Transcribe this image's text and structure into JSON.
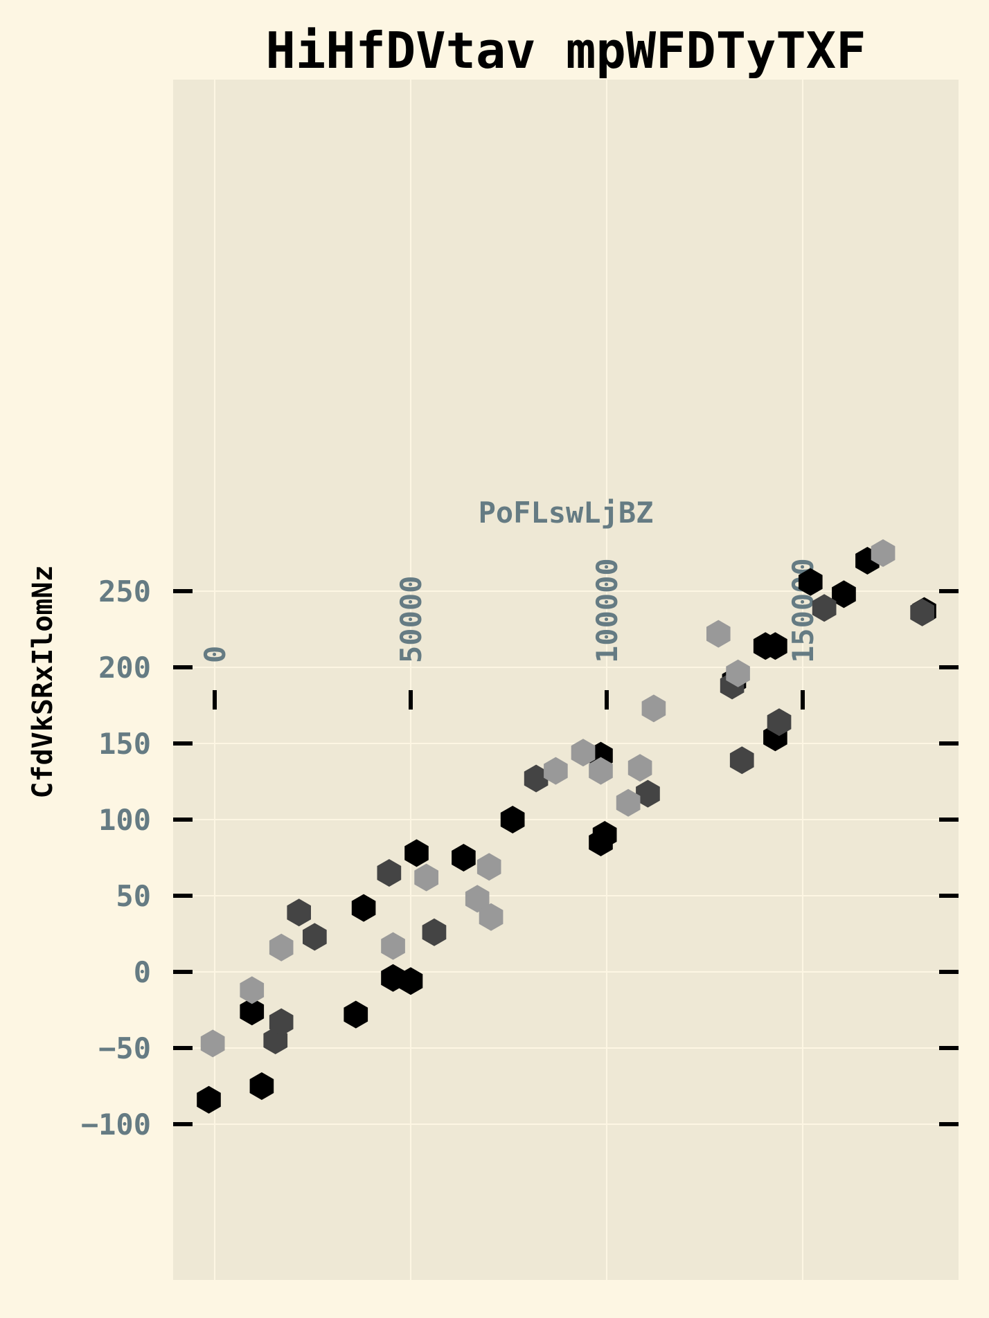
{
  "chart_data": {
    "type": "scatter",
    "title": "HiHfDVtav mpWFDTyTXF",
    "xlabel": "PoFLswLjBZ",
    "ylabel": "CfdVkSRxIlomNz",
    "xlim": [
      -10000,
      190000
    ],
    "ylim": [
      -100,
      290
    ],
    "xticks": [
      0,
      50000,
      100000,
      150000
    ],
    "xtick_labels": [
      "0",
      "50000",
      "100000",
      "150000"
    ],
    "yticks": [
      -100,
      -50,
      0,
      50,
      100,
      150,
      200,
      250
    ],
    "ytick_labels": [
      "−100",
      "−50",
      "0",
      "50",
      "100",
      "150",
      "200",
      "250"
    ],
    "grid": true,
    "marker": "hexagon",
    "colors": {
      "background": "#fdf6e3",
      "plot_background": "#eee8d5",
      "grid": "#fdf6e3",
      "tick_label": "#657b83",
      "tick": "#000000"
    },
    "series": [
      {
        "color": "#000000",
        "points": [
          {
            "x": -1500,
            "y": -84
          },
          {
            "x": 12000,
            "y": -75
          },
          {
            "x": 9500,
            "y": -26
          },
          {
            "x": 36000,
            "y": -28
          },
          {
            "x": 38000,
            "y": 42
          },
          {
            "x": 45500,
            "y": -4
          },
          {
            "x": 50000,
            "y": -6
          },
          {
            "x": 51500,
            "y": 78
          },
          {
            "x": 63500,
            "y": 75
          },
          {
            "x": 76000,
            "y": 100
          },
          {
            "x": 98500,
            "y": 85
          },
          {
            "x": 99500,
            "y": 90
          },
          {
            "x": 98500,
            "y": 142
          },
          {
            "x": 132500,
            "y": 191
          },
          {
            "x": 140500,
            "y": 214
          },
          {
            "x": 143000,
            "y": 214
          },
          {
            "x": 143000,
            "y": 154
          },
          {
            "x": 152000,
            "y": 256
          },
          {
            "x": 160500,
            "y": 248
          },
          {
            "x": 166500,
            "y": 270
          },
          {
            "x": 181000,
            "y": 237
          }
        ]
      },
      {
        "color": "#444444",
        "points": [
          {
            "x": 15500,
            "y": -45
          },
          {
            "x": 17000,
            "y": -33
          },
          {
            "x": 21500,
            "y": 39
          },
          {
            "x": 25500,
            "y": 23
          },
          {
            "x": 44500,
            "y": 65
          },
          {
            "x": 56000,
            "y": 26
          },
          {
            "x": 82000,
            "y": 127
          },
          {
            "x": 110500,
            "y": 117
          },
          {
            "x": 132000,
            "y": 188
          },
          {
            "x": 134500,
            "y": 139
          },
          {
            "x": 144000,
            "y": 164
          },
          {
            "x": 155500,
            "y": 239
          },
          {
            "x": 180500,
            "y": 236
          }
        ]
      },
      {
        "color": "#999999",
        "points": [
          {
            "x": -500,
            "y": -47
          },
          {
            "x": 9500,
            "y": -12
          },
          {
            "x": 17000,
            "y": 16
          },
          {
            "x": 45500,
            "y": 17
          },
          {
            "x": 54000,
            "y": 62
          },
          {
            "x": 67000,
            "y": 48
          },
          {
            "x": 70000,
            "y": 69
          },
          {
            "x": 70500,
            "y": 36
          },
          {
            "x": 87000,
            "y": 132
          },
          {
            "x": 94000,
            "y": 144
          },
          {
            "x": 98500,
            "y": 132
          },
          {
            "x": 105500,
            "y": 111
          },
          {
            "x": 108500,
            "y": 134
          },
          {
            "x": 112000,
            "y": 173
          },
          {
            "x": 128500,
            "y": 222
          },
          {
            "x": 133500,
            "y": 196
          },
          {
            "x": 170500,
            "y": 275
          }
        ]
      }
    ]
  }
}
